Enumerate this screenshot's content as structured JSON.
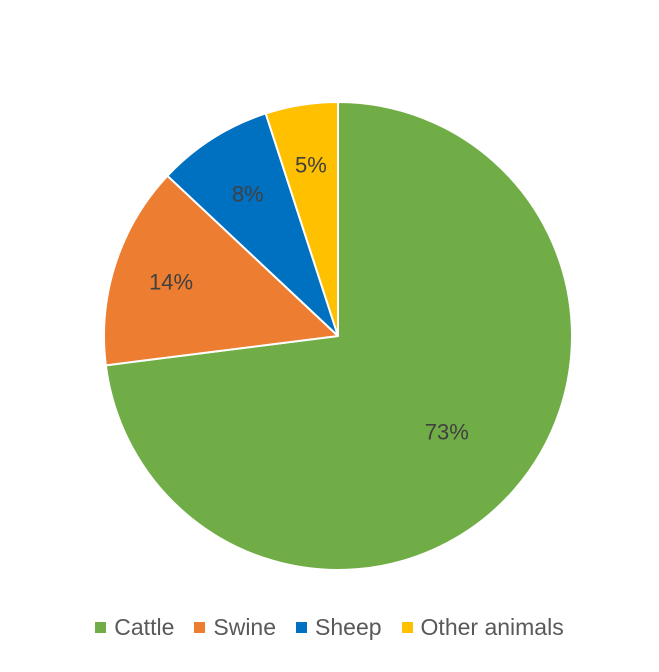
{
  "chart_data": {
    "type": "pie",
    "title": "",
    "categories": [
      "Cattle",
      "Swine",
      "Sheep",
      "Other animals"
    ],
    "values": [
      73,
      14,
      8,
      5
    ],
    "labels": [
      "73%",
      "14%",
      "8%",
      "5%"
    ],
    "colors": [
      "#70AD47",
      "#ED7D31",
      "#0070C0",
      "#FFC000"
    ],
    "legend_position": "bottom",
    "start_angle": "12 o'clock",
    "direction": "clockwise"
  }
}
